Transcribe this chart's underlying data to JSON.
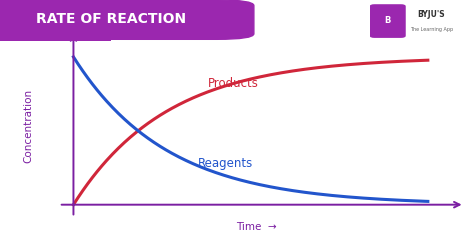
{
  "title": "RATE OF REACTION",
  "title_bg_color": "#9B27AF",
  "title_text_color": "#FFFFFF",
  "background_color": "#FFFFFF",
  "axis_color": "#7B1FA2",
  "products_color": "#D0263A",
  "reagents_color": "#2255CC",
  "products_label": "Products",
  "reagents_label": "Reagents",
  "xlabel": "Time",
  "ylabel": "Concentration",
  "line_width": 2.2,
  "decay_rate": 0.38,
  "figsize": [
    4.74,
    2.34
  ],
  "dpi": 100
}
